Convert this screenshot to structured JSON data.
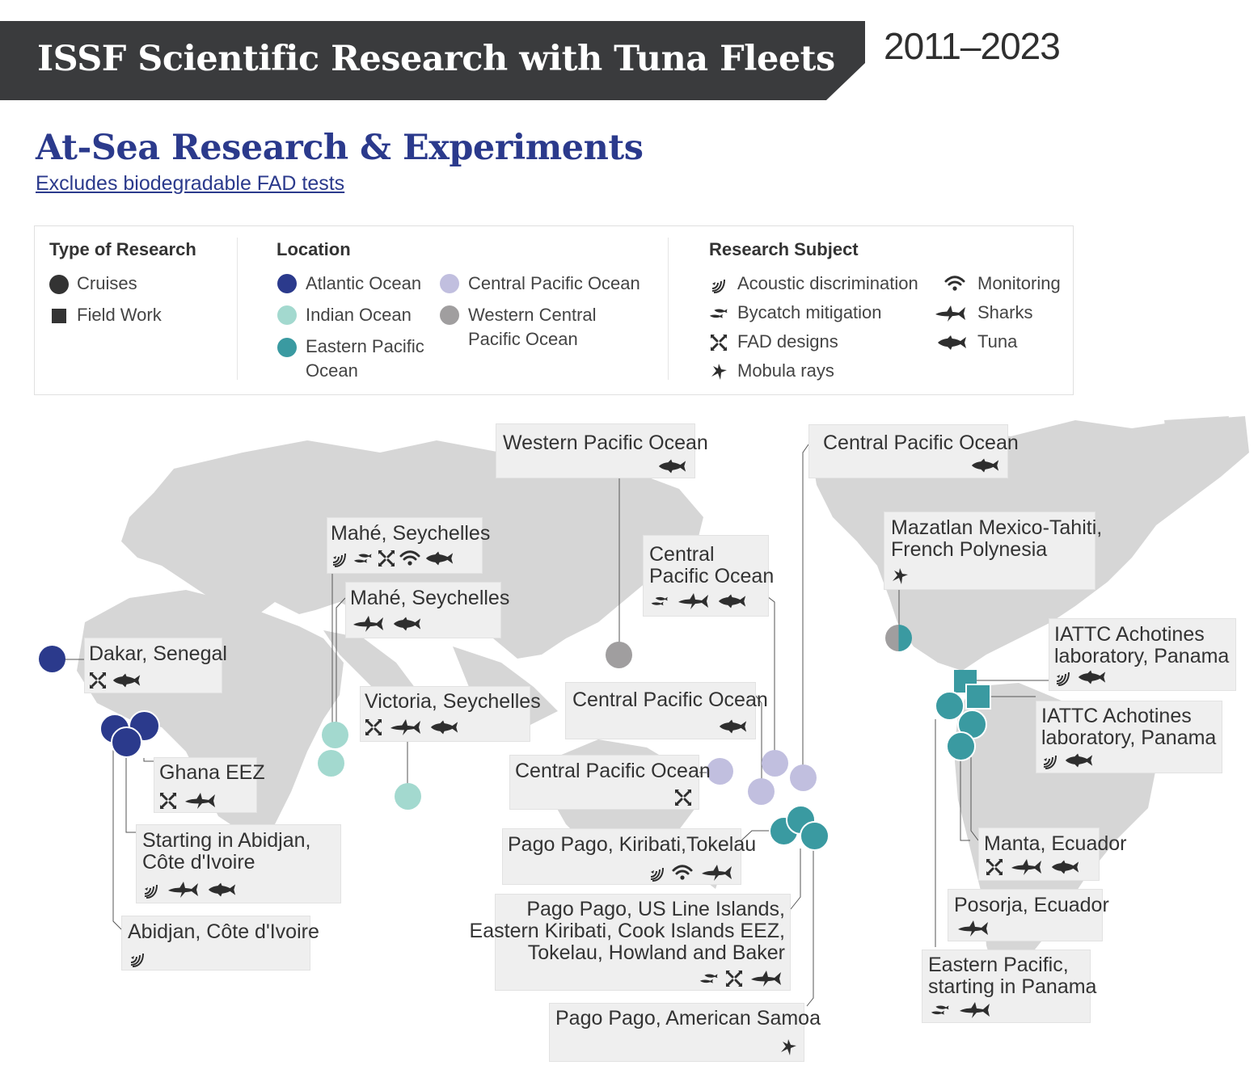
{
  "header": {
    "title": "ISSF Scientific Research with Tuna Fleets",
    "years": "2011–2023"
  },
  "section": {
    "title": "At-Sea Research & Experiments",
    "note": "Excludes biodegradable FAD tests"
  },
  "legend": {
    "type_heading": "Type of Research",
    "types": [
      {
        "label": "Cruises",
        "shape": "circle"
      },
      {
        "label": "Field Work",
        "shape": "square"
      }
    ],
    "location_heading": "Location",
    "locations": [
      {
        "label": "Atlantic Ocean",
        "color": "#2b3a8c"
      },
      {
        "label": "Indian Ocean",
        "color": "#a3d9cf"
      },
      {
        "label": "Eastern Pacific\nOcean",
        "color": "#3a9aa1"
      },
      {
        "label": "Central Pacific Ocean",
        "color": "#c1bfdf"
      },
      {
        "label": "Western Central\nPacific Ocean",
        "color": "#a09e9f"
      }
    ],
    "subject_heading": "Research Subject",
    "subjects": [
      {
        "label": "Acoustic discrimination",
        "icon": "acoustic-icon"
      },
      {
        "label": "Bycatch mitigation",
        "icon": "bycatch-icon"
      },
      {
        "label": "FAD designs",
        "icon": "fad-icon"
      },
      {
        "label": "Mobula rays",
        "icon": "ray-icon"
      },
      {
        "label": "Monitoring",
        "icon": "monitoring-icon"
      },
      {
        "label": "Sharks",
        "icon": "shark-icon"
      },
      {
        "label": "Tuna",
        "icon": "tuna-icon"
      }
    ]
  },
  "callouts": [
    {
      "id": "wpo",
      "title": "Western Pacific Ocean",
      "icons": [
        "tuna-icon"
      ]
    },
    {
      "id": "cpo-top",
      "title": "Central Pacific Ocean",
      "icons": [
        "tuna-icon"
      ]
    },
    {
      "id": "mazatlan",
      "title": "Mazatlan Mexico-Tahiti,\nFrench Polynesia",
      "icons": [
        "ray-icon"
      ]
    },
    {
      "id": "mahe1",
      "title": "Mahé, Seychelles",
      "icons": [
        "acoustic-icon",
        "bycatch-icon",
        "fad-icon",
        "monitoring-icon",
        "tuna-icon"
      ]
    },
    {
      "id": "mahe2",
      "title": "Mahé, Seychelles",
      "icons": [
        "shark-icon",
        "tuna-icon"
      ]
    },
    {
      "id": "cpo-mid",
      "title": "Central\nPacific Ocean",
      "icons": [
        "bycatch-icon",
        "shark-icon",
        "tuna-icon"
      ]
    },
    {
      "id": "iattc1",
      "title": "IATTC Achotines\nlaboratory, Panama",
      "icons": [
        "acoustic-icon",
        "tuna-icon"
      ]
    },
    {
      "id": "dakar",
      "title": "Dakar, Senegal",
      "icons": [
        "fad-icon",
        "tuna-icon"
      ]
    },
    {
      "id": "victoria",
      "title": "Victoria, Seychelles",
      "icons": [
        "fad-icon",
        "shark-icon",
        "tuna-icon"
      ]
    },
    {
      "id": "cpo-3",
      "title": "Central Pacific Ocean",
      "icons": [
        "tuna-icon"
      ]
    },
    {
      "id": "iattc2",
      "title": "IATTC Achotines\nlaboratory, Panama",
      "icons": [
        "acoustic-icon",
        "tuna-icon"
      ]
    },
    {
      "id": "ghana",
      "title": "Ghana EEZ",
      "icons": [
        "fad-icon",
        "shark-icon"
      ]
    },
    {
      "id": "cpo-4",
      "title": "Central Pacific Ocean",
      "icons": [
        "fad-icon"
      ]
    },
    {
      "id": "abidjan-start",
      "title": "Starting in Abidjan,\nCôte d'Ivoire",
      "icons": [
        "acoustic-icon",
        "shark-icon",
        "tuna-icon"
      ]
    },
    {
      "id": "pago-kiribati",
      "title": "Pago Pago, Kiribati,Tokelau",
      "icons": [
        "acoustic-icon",
        "monitoring-icon",
        "shark-icon"
      ]
    },
    {
      "id": "manta",
      "title": "Manta, Ecuador",
      "icons": [
        "fad-icon",
        "shark-icon",
        "tuna-icon"
      ]
    },
    {
      "id": "posorja",
      "title": "Posorja, Ecuador",
      "icons": [
        "shark-icon"
      ]
    },
    {
      "id": "abidjan",
      "title": "Abidjan, Côte d'Ivoire",
      "icons": [
        "acoustic-icon"
      ]
    },
    {
      "id": "pago-line",
      "title": "Pago Pago, US Line Islands,\nEastern Kiribati, Cook Islands EEZ,\nTokelau, Howland and Baker",
      "icons": [
        "bycatch-icon",
        "fad-icon",
        "shark-icon"
      ]
    },
    {
      "id": "eastern-pacific",
      "title": "Eastern Pacific,\nstarting in Panama",
      "icons": [
        "bycatch-icon",
        "shark-icon"
      ]
    },
    {
      "id": "pago-samoa",
      "title": "Pago Pago, American Samoa",
      "icons": [
        "ray-icon"
      ]
    }
  ],
  "markers": [
    {
      "id": "dakar",
      "type": "cruise",
      "location": "Atlantic Ocean"
    },
    {
      "id": "ghana-1",
      "type": "cruise",
      "location": "Atlantic Ocean"
    },
    {
      "id": "ghana-2",
      "type": "cruise",
      "location": "Atlantic Ocean"
    },
    {
      "id": "ghana-3",
      "type": "cruise",
      "location": "Atlantic Ocean"
    },
    {
      "id": "mahe-1",
      "type": "cruise",
      "location": "Indian Ocean"
    },
    {
      "id": "mahe-2",
      "type": "cruise",
      "location": "Indian Ocean"
    },
    {
      "id": "victoria",
      "type": "cruise",
      "location": "Indian Ocean"
    },
    {
      "id": "wpo",
      "type": "cruise",
      "location": "Western Central Pacific Ocean"
    },
    {
      "id": "cpo-1",
      "type": "cruise",
      "location": "Central Pacific Ocean"
    },
    {
      "id": "cpo-2",
      "type": "cruise",
      "location": "Central Pacific Ocean"
    },
    {
      "id": "cpo-3",
      "type": "cruise",
      "location": "Central Pacific Ocean"
    },
    {
      "id": "cpo-4",
      "type": "cruise",
      "location": "Central Pacific Ocean"
    },
    {
      "id": "pago-1",
      "type": "cruise",
      "location": "Eastern Pacific Ocean"
    },
    {
      "id": "pago-2",
      "type": "cruise",
      "location": "Eastern Pacific Ocean"
    },
    {
      "id": "pago-3",
      "type": "cruise",
      "location": "Eastern Pacific Ocean"
    },
    {
      "id": "mazatlan",
      "type": "cruise",
      "location": "Western Central Pacific Ocean / Eastern Pacific Ocean"
    },
    {
      "id": "iattc-1",
      "type": "field work",
      "location": "Eastern Pacific Ocean"
    },
    {
      "id": "iattc-2",
      "type": "field work",
      "location": "Eastern Pacific Ocean"
    },
    {
      "id": "ep-1",
      "type": "cruise",
      "location": "Eastern Pacific Ocean"
    },
    {
      "id": "ep-2",
      "type": "cruise",
      "location": "Eastern Pacific Ocean"
    },
    {
      "id": "ep-3",
      "type": "cruise",
      "location": "Eastern Pacific Ocean"
    }
  ]
}
